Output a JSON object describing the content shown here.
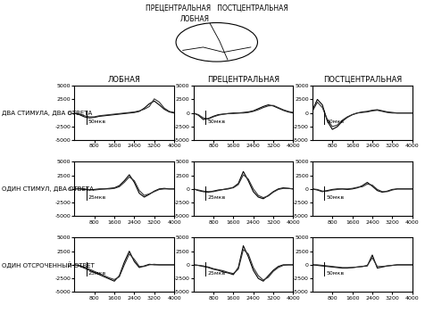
{
  "brain_labels": [
    "ПРЕЦЕНТРАЛЬНАЯ   ПОСТЦЕНТРАЛЬНАЯ",
    "ЛОБНАЯ"
  ],
  "row_labels": [
    "ДВА СТИМУЛА, ДВА ОТВЕТА",
    "ОДИН СТИМУЛ, ДВА ОТВЕТА",
    "ОДИН ОТСРОЧЕННЫЙ ОТВЕТ"
  ],
  "chart_data": [
    {
      "type": "line",
      "title": "ЛОБНАЯ",
      "annotations": [
        "50мкв"
      ],
      "x": [
        0,
        200,
        400,
        600,
        800,
        1000,
        1200,
        1400,
        1600,
        1800,
        2000,
        2200,
        2400,
        2600,
        2800,
        3000,
        3200,
        3400,
        3600,
        3800,
        4000
      ],
      "xlim": [
        0,
        4000
      ],
      "xticks": [
        800,
        1600,
        2400,
        3200,
        4000
      ],
      "ylim": [
        -5000,
        5000
      ],
      "yticks": [
        -5000,
        -2500,
        0,
        2500,
        5000
      ],
      "series": [
        {
          "color": "#000000",
          "line_style": "solid",
          "values": [
            0,
            -300,
            -700,
            -900,
            -800,
            -600,
            -500,
            -400,
            -300,
            -200,
            -100,
            0,
            100,
            300,
            900,
            1700,
            2200,
            1500,
            700,
            200,
            0
          ]
        },
        {
          "color": "#333333",
          "line_style": "solid",
          "values": [
            0,
            -200,
            -500,
            -700,
            -700,
            -500,
            -400,
            -300,
            -200,
            -100,
            0,
            100,
            200,
            400,
            700,
            1200,
            2600,
            2000,
            900,
            300,
            100
          ]
        }
      ]
    },
    {
      "type": "line",
      "title": "ПРЕЦЕНТРАЛЬНАЯ",
      "annotations": [
        "50мкв"
      ],
      "x": [
        0,
        200,
        400,
        600,
        800,
        1000,
        1200,
        1400,
        1600,
        1800,
        2000,
        2200,
        2400,
        2600,
        2800,
        3000,
        3200,
        3400,
        3600,
        3800,
        4000
      ],
      "xlim": [
        0,
        4000
      ],
      "xticks": [
        800,
        1600,
        2400,
        3200,
        4000
      ],
      "ylim": [
        -5000,
        5000
      ],
      "yticks": [
        -5000,
        -2500,
        0,
        2500,
        5000
      ],
      "series": [
        {
          "color": "#000000",
          "line_style": "solid",
          "values": [
            0,
            -400,
            -1200,
            -1000,
            -600,
            -300,
            -200,
            -100,
            0,
            0,
            100,
            200,
            400,
            800,
            1200,
            1500,
            1300,
            900,
            500,
            200,
            0
          ]
        },
        {
          "color": "#333333",
          "line_style": "solid",
          "values": [
            0,
            -300,
            -900,
            -1100,
            -700,
            -400,
            -200,
            -100,
            -100,
            0,
            0,
            100,
            300,
            600,
            1000,
            1300,
            1400,
            1000,
            600,
            300,
            100
          ]
        }
      ]
    },
    {
      "type": "line",
      "title": "ПОСТЦЕНТРАЛЬНАЯ",
      "annotations": [
        "50мкв"
      ],
      "x": [
        0,
        200,
        400,
        600,
        800,
        1000,
        1200,
        1400,
        1600,
        1800,
        2000,
        2200,
        2400,
        2600,
        2800,
        3000,
        3200,
        3400,
        3600,
        3800,
        4000
      ],
      "xlim": [
        0,
        4000
      ],
      "xticks": [
        800,
        1600,
        2400,
        3200,
        4000
      ],
      "ylim": [
        -5000,
        5000
      ],
      "yticks": [
        -5000,
        -2500,
        0,
        2500,
        5000
      ],
      "series": [
        {
          "color": "#000000",
          "line_style": "solid",
          "values": [
            500,
            2500,
            1500,
            -1500,
            -3000,
            -2500,
            -1500,
            -800,
            -300,
            0,
            200,
            300,
            500,
            600,
            400,
            200,
            100,
            0,
            0,
            0,
            0
          ]
        },
        {
          "color": "#333333",
          "line_style": "solid",
          "values": [
            300,
            2000,
            1000,
            -1200,
            -2500,
            -2200,
            -1300,
            -700,
            -300,
            0,
            100,
            200,
            400,
            500,
            300,
            100,
            0,
            0,
            0,
            0,
            0
          ]
        }
      ]
    },
    {
      "type": "line",
      "annotations": [
        "25мкв"
      ],
      "x": [
        0,
        200,
        400,
        600,
        800,
        1000,
        1200,
        1400,
        1600,
        1800,
        2000,
        2200,
        2400,
        2600,
        2800,
        3000,
        3200,
        3400,
        3600,
        3800,
        4000
      ],
      "xlim": [
        0,
        4000
      ],
      "xticks": [
        800,
        1600,
        2400,
        3200,
        4000
      ],
      "ylim": [
        -5000,
        5000
      ],
      "yticks": [
        -5000,
        -2500,
        0,
        2500,
        5000
      ],
      "series": [
        {
          "color": "#000000",
          "line_style": "solid",
          "values": [
            0,
            0,
            -100,
            -200,
            -100,
            0,
            0,
            100,
            200,
            600,
            1500,
            2600,
            1200,
            -800,
            -1500,
            -1000,
            -400,
            0,
            100,
            0,
            0
          ]
        },
        {
          "color": "#333333",
          "line_style": "solid",
          "values": [
            0,
            100,
            0,
            -100,
            -200,
            -100,
            0,
            0,
            100,
            400,
            1200,
            2200,
            1500,
            -300,
            -1200,
            -900,
            -500,
            -100,
            0,
            0,
            0
          ]
        }
      ]
    },
    {
      "type": "line",
      "annotations": [
        "25мкв"
      ],
      "x": [
        0,
        200,
        400,
        600,
        800,
        1000,
        1200,
        1400,
        1600,
        1800,
        2000,
        2200,
        2400,
        2600,
        2800,
        3000,
        3200,
        3400,
        3600,
        3800,
        4000
      ],
      "xlim": [
        0,
        4000
      ],
      "xticks": [
        800,
        1600,
        2400,
        3200,
        4000
      ],
      "ylim": [
        -5000,
        5000
      ],
      "yticks": [
        -5000,
        -2500,
        0,
        2500,
        5000
      ],
      "series": [
        {
          "color": "#000000",
          "line_style": "solid",
          "values": [
            0,
            -300,
            -500,
            -600,
            -400,
            -200,
            -100,
            0,
            300,
            1000,
            3200,
            1500,
            -500,
            -1500,
            -1800,
            -1200,
            -500,
            0,
            200,
            100,
            0
          ]
        },
        {
          "color": "#333333",
          "line_style": "solid",
          "values": [
            0,
            -200,
            -400,
            -500,
            -500,
            -300,
            -100,
            100,
            200,
            800,
            2600,
            1800,
            0,
            -1200,
            -1600,
            -1300,
            -600,
            -100,
            100,
            100,
            0
          ]
        }
      ]
    },
    {
      "type": "line",
      "annotations": [
        "50мкв"
      ],
      "x": [
        0,
        200,
        400,
        600,
        800,
        1000,
        1200,
        1400,
        1600,
        1800,
        2000,
        2200,
        2400,
        2600,
        2800,
        3000,
        3200,
        3400,
        3600,
        3800,
        4000
      ],
      "xlim": [
        0,
        4000
      ],
      "xticks": [
        800,
        1600,
        2400,
        3200,
        4000
      ],
      "ylim": [
        -5000,
        5000
      ],
      "yticks": [
        -5000,
        -2500,
        0,
        2500,
        5000
      ],
      "series": [
        {
          "color": "#000000",
          "line_style": "solid",
          "values": [
            0,
            -200,
            -500,
            -300,
            -100,
            0,
            0,
            -100,
            0,
            200,
            600,
            1200,
            500,
            -300,
            -600,
            -400,
            -100,
            0,
            0,
            0,
            0
          ]
        },
        {
          "color": "#333333",
          "line_style": "solid",
          "values": [
            0,
            -100,
            -400,
            -400,
            -200,
            -100,
            0,
            0,
            100,
            300,
            400,
            900,
            700,
            -100,
            -500,
            -500,
            -200,
            0,
            0,
            0,
            0
          ]
        }
      ]
    },
    {
      "type": "line",
      "annotations": [
        "25мкв"
      ],
      "x": [
        0,
        200,
        400,
        600,
        800,
        1000,
        1200,
        1400,
        1600,
        1800,
        2000,
        2200,
        2400,
        2600,
        2800,
        3000,
        3200,
        3400,
        3600,
        3800,
        4000
      ],
      "xlim": [
        0,
        4000
      ],
      "xticks": [
        800,
        1600,
        2400,
        3200,
        4000
      ],
      "ylim": [
        -5000,
        5000
      ],
      "yticks": [
        -5000,
        -2500,
        0,
        2500,
        5000
      ],
      "series": [
        {
          "color": "#000000",
          "line_style": "solid",
          "values": [
            0,
            -200,
            -600,
            -1000,
            -1400,
            -1800,
            -2200,
            -2600,
            -3000,
            -2000,
            500,
            2500,
            600,
            -500,
            -200,
            100,
            0,
            0,
            0,
            0,
            0
          ]
        },
        {
          "color": "#333333",
          "line_style": "solid",
          "values": [
            0,
            -100,
            -400,
            -800,
            -1200,
            -1600,
            -2000,
            -2400,
            -2700,
            -2200,
            0,
            2000,
            1000,
            -300,
            -300,
            0,
            100,
            0,
            0,
            0,
            0
          ]
        }
      ]
    },
    {
      "type": "line",
      "annotations": [
        "25мкв"
      ],
      "x": [
        0,
        200,
        400,
        600,
        800,
        1000,
        1200,
        1400,
        1600,
        1800,
        2000,
        2200,
        2400,
        2600,
        2800,
        3000,
        3200,
        3400,
        3600,
        3800,
        4000
      ],
      "xlim": [
        0,
        4000
      ],
      "xticks": [
        800,
        1600,
        2400,
        3200,
        4000
      ],
      "ylim": [
        -5000,
        5000
      ],
      "yticks": [
        -5000,
        -2500,
        0,
        2500,
        5000
      ],
      "series": [
        {
          "color": "#000000",
          "line_style": "solid",
          "values": [
            0,
            -100,
            -300,
            -500,
            -800,
            -1000,
            -1300,
            -1500,
            -1800,
            -500,
            3500,
            1500,
            -1000,
            -2500,
            -3000,
            -2000,
            -1000,
            -300,
            0,
            0,
            0
          ]
        },
        {
          "color": "#333333",
          "line_style": "solid",
          "values": [
            0,
            -100,
            -200,
            -400,
            -700,
            -900,
            -1100,
            -1400,
            -1600,
            -800,
            2800,
            2000,
            -500,
            -2000,
            -2800,
            -2300,
            -1200,
            -500,
            -100,
            0,
            0
          ]
        }
      ]
    },
    {
      "type": "line",
      "annotations": [
        "50мкв"
      ],
      "x": [
        0,
        200,
        400,
        600,
        800,
        1000,
        1200,
        1400,
        1600,
        1800,
        2000,
        2200,
        2400,
        2600,
        2800,
        3000,
        3200,
        3400,
        3600,
        3800,
        4000
      ],
      "xlim": [
        0,
        4000
      ],
      "xticks": [
        800,
        1600,
        2400,
        3200,
        4000
      ],
      "ylim": [
        -5000,
        5000
      ],
      "yticks": [
        -5000,
        -2500,
        0,
        2500,
        5000
      ],
      "series": [
        {
          "color": "#000000",
          "line_style": "solid",
          "values": [
            0,
            -100,
            -200,
            -300,
            -400,
            -500,
            -600,
            -600,
            -500,
            -400,
            -300,
            -200,
            1800,
            -600,
            -400,
            -200,
            -100,
            0,
            0,
            0,
            0
          ]
        },
        {
          "color": "#333333",
          "line_style": "solid",
          "values": [
            0,
            0,
            -100,
            -200,
            -300,
            -400,
            -500,
            -500,
            -500,
            -400,
            -300,
            -100,
            1300,
            -300,
            -300,
            -200,
            -100,
            0,
            0,
            0,
            0
          ]
        }
      ]
    }
  ]
}
